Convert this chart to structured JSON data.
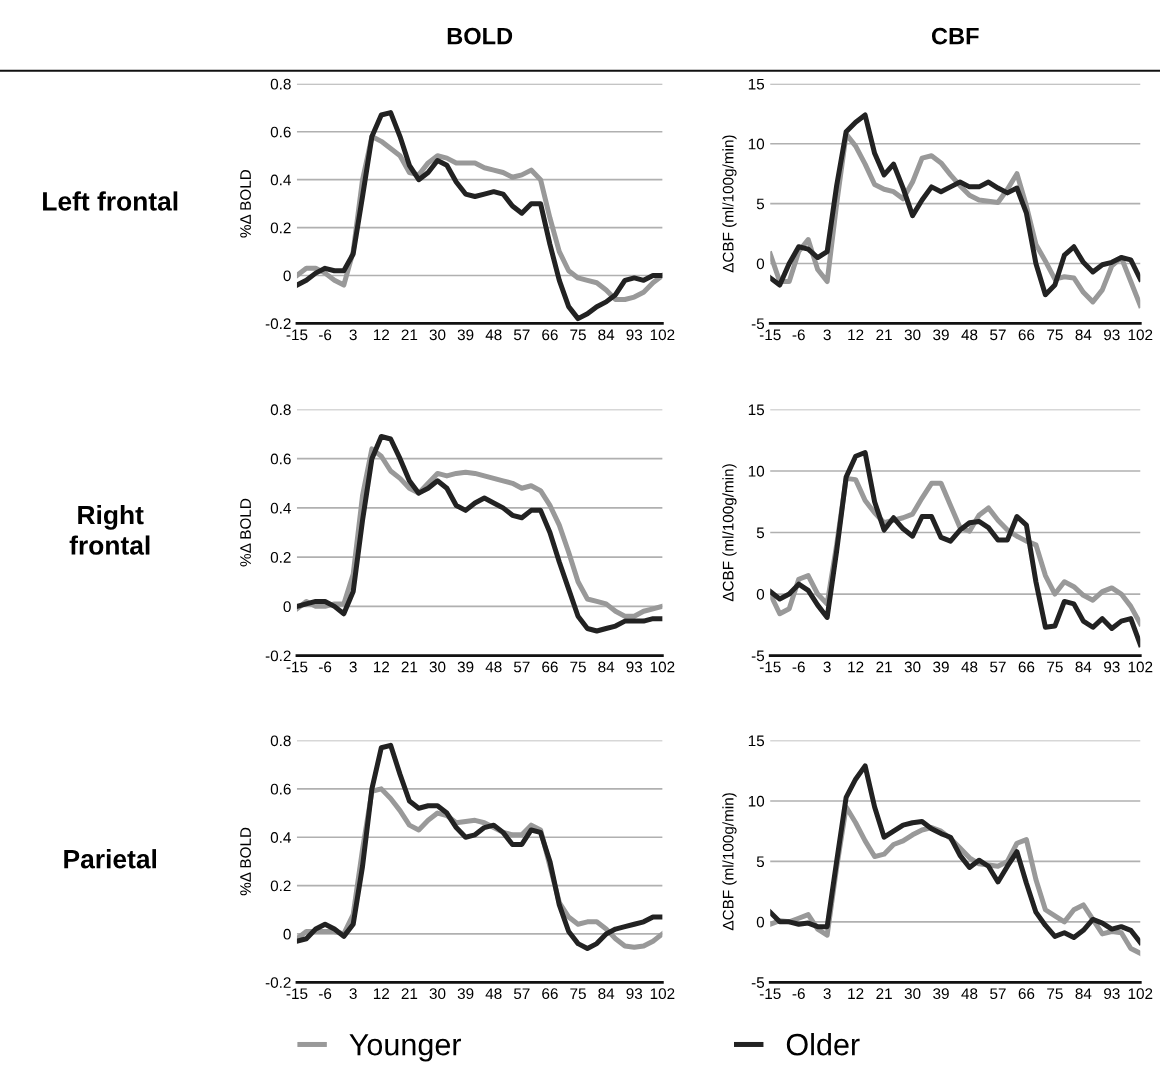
{
  "chart_data": [
    {
      "type": "line",
      "title": "BOLD",
      "annotations": [
        "Left frontal"
      ],
      "ylabel": "%Δ BOLD",
      "xlim": [
        -15,
        102
      ],
      "xticks": [
        -15,
        -6,
        3,
        12,
        21,
        30,
        39,
        48,
        57,
        66,
        75,
        84,
        93,
        102
      ],
      "ylim": [
        -0.2,
        0.8
      ],
      "yticks": [
        -0.2,
        0,
        0.2,
        0.4,
        0.6,
        0.8
      ],
      "grid": "y",
      "legend": "bottom",
      "x": [
        -15,
        -12,
        -9,
        -6,
        -3,
        0,
        3,
        6,
        9,
        12,
        15,
        18,
        21,
        24,
        27,
        30,
        33,
        36,
        39,
        42,
        45,
        48,
        51,
        54,
        57,
        60,
        63,
        66,
        69,
        72,
        75,
        78,
        81,
        84,
        87,
        90,
        93,
        96,
        99,
        102
      ],
      "series": [
        {
          "name": "Younger",
          "color": "#999999",
          "values": [
            0,
            0.03,
            0.03,
            0.01,
            -0.02,
            -0.04,
            0.1,
            0.4,
            0.58,
            0.56,
            0.53,
            0.5,
            0.43,
            0.42,
            0.47,
            0.5,
            0.49,
            0.47,
            0.47,
            0.47,
            0.45,
            0.44,
            0.43,
            0.41,
            0.42,
            0.44,
            0.4,
            0.24,
            0.1,
            0.02,
            -0.01,
            -0.02,
            -0.03,
            -0.06,
            -0.1,
            -0.1,
            -0.09,
            -0.07,
            -0.03,
            0
          ]
        },
        {
          "name": "Older",
          "color": "#222222",
          "values": [
            -0.04,
            -0.02,
            0.01,
            0.03,
            0.02,
            0.02,
            0.09,
            0.33,
            0.58,
            0.67,
            0.68,
            0.58,
            0.46,
            0.4,
            0.43,
            0.48,
            0.46,
            0.39,
            0.34,
            0.33,
            0.34,
            0.35,
            0.34,
            0.29,
            0.26,
            0.3,
            0.3,
            0.13,
            -0.02,
            -0.13,
            -0.18,
            -0.16,
            -0.13,
            -0.11,
            -0.08,
            -0.02,
            -0.01,
            -0.02,
            0,
            0
          ]
        }
      ]
    },
    {
      "type": "line",
      "title": "CBF",
      "ylabel": "ΔCBF (ml/100g/min)",
      "xlim": [
        -15,
        102
      ],
      "xticks": [
        -15,
        -6,
        3,
        12,
        21,
        30,
        39,
        48,
        57,
        66,
        75,
        84,
        93,
        102
      ],
      "ylim": [
        -5,
        15
      ],
      "yticks": [
        -5,
        0,
        5,
        10,
        15
      ],
      "grid": "y",
      "x": [
        -15,
        -12,
        -9,
        -6,
        -3,
        0,
        3,
        6,
        9,
        12,
        15,
        18,
        21,
        24,
        27,
        30,
        33,
        36,
        39,
        42,
        45,
        48,
        51,
        54,
        57,
        60,
        63,
        66,
        69,
        72,
        75,
        78,
        81,
        84,
        87,
        90,
        93,
        96,
        99,
        102
      ],
      "series": [
        {
          "color": "#999999",
          "values": [
            0.8,
            -1.5,
            -1.5,
            1,
            2,
            -0.5,
            -1.5,
            5,
            10.8,
            9.8,
            8.3,
            6.6,
            6.2,
            6,
            5.4,
            6.8,
            8.8,
            9,
            8.4,
            7.4,
            6.5,
            5.7,
            5.3,
            5.2,
            5.1,
            6.2,
            7.5,
            4.8,
            1.6,
            0.2,
            -1.3,
            -1.1,
            -1.2,
            -2.4,
            -3.2,
            -2.2,
            -0.2,
            0.5,
            -1.5,
            -3.5
          ]
        },
        {
          "color": "#222222",
          "values": [
            -1.2,
            -1.8,
            0,
            1.4,
            1.2,
            0.5,
            1,
            6.5,
            11,
            11.8,
            12.4,
            9.2,
            7.4,
            8.3,
            6.3,
            4,
            5.3,
            6.4,
            6,
            6.4,
            6.8,
            6.4,
            6.4,
            6.8,
            6.3,
            5.9,
            6.3,
            4.2,
            0,
            -2.6,
            -1.8,
            0.7,
            1.4,
            0.1,
            -0.7,
            -0.1,
            0.1,
            0.5,
            0.3,
            -1.3
          ]
        }
      ]
    },
    {
      "type": "line",
      "annotations": [
        "Right\nfrontal"
      ],
      "ylabel": "%Δ BOLD",
      "xlim": [
        -15,
        102
      ],
      "xticks": [
        -15,
        -6,
        3,
        12,
        21,
        30,
        39,
        48,
        57,
        66,
        75,
        84,
        93,
        102
      ],
      "ylim": [
        -0.2,
        0.8
      ],
      "yticks": [
        -0.2,
        0,
        0.2,
        0.4,
        0.6,
        0.8
      ],
      "grid": "y",
      "x": [
        -15,
        -12,
        -9,
        -6,
        -3,
        0,
        3,
        6,
        9,
        12,
        15,
        18,
        21,
        24,
        27,
        30,
        33,
        36,
        39,
        42,
        45,
        48,
        51,
        54,
        57,
        60,
        63,
        66,
        69,
        72,
        75,
        78,
        81,
        84,
        87,
        90,
        93,
        96,
        99,
        102
      ],
      "series": [
        {
          "color": "#999999",
          "values": [
            -0.01,
            0.02,
            0,
            0,
            0.01,
            0.01,
            0.13,
            0.45,
            0.64,
            0.61,
            0.55,
            0.52,
            0.48,
            0.46,
            0.5,
            0.54,
            0.53,
            0.54,
            0.545,
            0.54,
            0.53,
            0.52,
            0.51,
            0.5,
            0.48,
            0.49,
            0.47,
            0.41,
            0.33,
            0.22,
            0.1,
            0.03,
            0.02,
            0.01,
            -0.02,
            -0.04,
            -0.04,
            -0.02,
            -0.01,
            0
          ]
        },
        {
          "color": "#222222",
          "values": [
            0,
            0.01,
            0.02,
            0.02,
            0,
            -0.03,
            0.06,
            0.35,
            0.6,
            0.69,
            0.68,
            0.6,
            0.51,
            0.46,
            0.48,
            0.51,
            0.48,
            0.41,
            0.39,
            0.42,
            0.44,
            0.42,
            0.4,
            0.37,
            0.36,
            0.39,
            0.39,
            0.3,
            0.18,
            0.07,
            -0.04,
            -0.09,
            -0.1,
            -0.09,
            -0.08,
            -0.06,
            -0.06,
            -0.06,
            -0.05,
            -0.05
          ]
        }
      ]
    },
    {
      "type": "line",
      "ylabel": "ΔCBF (ml/100g/min)",
      "xlim": [
        -15,
        102
      ],
      "xticks": [
        -15,
        -6,
        3,
        12,
        21,
        30,
        39,
        48,
        57,
        66,
        75,
        84,
        93,
        102
      ],
      "ylim": [
        -5,
        15
      ],
      "yticks": [
        -5,
        0,
        5,
        10,
        15
      ],
      "grid": "y",
      "x": [
        -15,
        -12,
        -9,
        -6,
        -3,
        0,
        3,
        6,
        9,
        12,
        15,
        18,
        21,
        24,
        27,
        30,
        33,
        36,
        39,
        42,
        45,
        48,
        51,
        54,
        57,
        60,
        63,
        66,
        69,
        72,
        75,
        78,
        81,
        84,
        87,
        90,
        93,
        96,
        99,
        102
      ],
      "series": [
        {
          "color": "#999999",
          "values": [
            0,
            -1.6,
            -1.2,
            1.2,
            1.5,
            0,
            -0.8,
            4,
            9.4,
            9.3,
            7.6,
            6.6,
            5.8,
            6,
            6.2,
            6.5,
            7.8,
            9,
            9,
            7.2,
            5.4,
            5.1,
            6.4,
            7,
            6,
            5.2,
            4.7,
            4.3,
            4,
            1.5,
            0,
            1,
            0.6,
            -0.1,
            -0.5,
            0.2,
            0.5,
            0,
            -1,
            -2.4
          ]
        },
        {
          "color": "#222222",
          "values": [
            0.2,
            -0.4,
            0,
            0.8,
            0.3,
            -0.9,
            -1.9,
            3.5,
            9.5,
            11.2,
            11.5,
            7.5,
            5.2,
            6.2,
            5.3,
            4.7,
            6.3,
            6.3,
            4.6,
            4.3,
            5.2,
            5.8,
            5.9,
            5.4,
            4.4,
            4.4,
            6.3,
            5.6,
            1,
            -2.7,
            -2.6,
            -0.6,
            -0.8,
            -2.2,
            -2.7,
            -2,
            -2.8,
            -2.2,
            -2,
            -4.1
          ]
        }
      ]
    },
    {
      "type": "line",
      "annotations": [
        "Parietal"
      ],
      "ylabel": "%Δ BOLD",
      "xlim": [
        -15,
        102
      ],
      "xticks": [
        -15,
        -6,
        3,
        12,
        21,
        30,
        39,
        48,
        57,
        66,
        75,
        84,
        93,
        102
      ],
      "ylim": [
        -0.2,
        0.8
      ],
      "yticks": [
        -0.2,
        0,
        0.2,
        0.4,
        0.6,
        0.8
      ],
      "grid": "y",
      "x": [
        -15,
        -12,
        -9,
        -6,
        -3,
        0,
        3,
        6,
        9,
        12,
        15,
        18,
        21,
        24,
        27,
        30,
        33,
        36,
        39,
        42,
        45,
        48,
        51,
        54,
        57,
        60,
        63,
        66,
        69,
        72,
        75,
        78,
        81,
        84,
        87,
        90,
        93,
        96,
        99,
        102
      ],
      "series": [
        {
          "color": "#999999",
          "values": [
            -0.02,
            0.01,
            0.01,
            0.01,
            0.01,
            0,
            0.08,
            0.35,
            0.59,
            0.6,
            0.56,
            0.51,
            0.45,
            0.43,
            0.47,
            0.5,
            0.49,
            0.46,
            0.465,
            0.47,
            0.46,
            0.44,
            0.42,
            0.41,
            0.41,
            0.45,
            0.43,
            0.28,
            0.13,
            0.07,
            0.04,
            0.05,
            0.05,
            0.02,
            -0.02,
            -0.05,
            -0.055,
            -0.05,
            -0.03,
            0
          ]
        },
        {
          "color": "#222222",
          "values": [
            -0.03,
            -0.02,
            0.02,
            0.04,
            0.02,
            -0.01,
            0.04,
            0.28,
            0.6,
            0.77,
            0.78,
            0.66,
            0.55,
            0.52,
            0.53,
            0.53,
            0.5,
            0.44,
            0.4,
            0.41,
            0.44,
            0.45,
            0.42,
            0.37,
            0.37,
            0.43,
            0.42,
            0.3,
            0.12,
            0.01,
            -0.04,
            -0.06,
            -0.04,
            0,
            0.02,
            0.03,
            0.04,
            0.05,
            0.07,
            0.07
          ]
        }
      ]
    },
    {
      "type": "line",
      "ylabel": "ΔCBF (ml/100g/min)",
      "xlim": [
        -15,
        102
      ],
      "xticks": [
        -15,
        -6,
        3,
        12,
        21,
        30,
        39,
        48,
        57,
        66,
        75,
        84,
        93,
        102
      ],
      "ylim": [
        -5,
        15
      ],
      "yticks": [
        -5,
        0,
        5,
        10,
        15
      ],
      "grid": "y",
      "x": [
        -15,
        -12,
        -9,
        -6,
        -3,
        0,
        3,
        6,
        9,
        12,
        15,
        18,
        21,
        24,
        27,
        30,
        33,
        36,
        39,
        42,
        45,
        48,
        51,
        54,
        57,
        60,
        63,
        66,
        69,
        72,
        75,
        78,
        81,
        84,
        87,
        90,
        93,
        96,
        99,
        102
      ],
      "series": [
        {
          "color": "#999999",
          "values": [
            -0.2,
            0.1,
            0,
            0.3,
            0.6,
            -0.6,
            -1.1,
            4.5,
            9.5,
            8.2,
            6.7,
            5.4,
            5.6,
            6.4,
            6.7,
            7.2,
            7.6,
            7.8,
            7.5,
            6.9,
            6.1,
            5.3,
            4.8,
            4.7,
            4.6,
            5,
            6.5,
            6.8,
            3.5,
            1,
            0.5,
            0,
            1,
            1.4,
            0.2,
            -1,
            -0.8,
            -0.9,
            -2.2,
            -2.6
          ]
        },
        {
          "color": "#222222",
          "values": [
            0.8,
            0,
            0,
            -0.2,
            -0.1,
            -0.4,
            -0.4,
            5,
            10.3,
            11.8,
            12.9,
            9.5,
            7,
            7.5,
            8,
            8.2,
            8.3,
            7.7,
            7.3,
            7,
            5.5,
            4.5,
            5.1,
            4.6,
            3.3,
            4.6,
            5.8,
            3.2,
            0.8,
            -0.3,
            -1.2,
            -0.9,
            -1.3,
            -0.7,
            0.2,
            -0.1,
            -0.6,
            -0.4,
            -0.7,
            -1.7
          ]
        }
      ]
    }
  ]
}
